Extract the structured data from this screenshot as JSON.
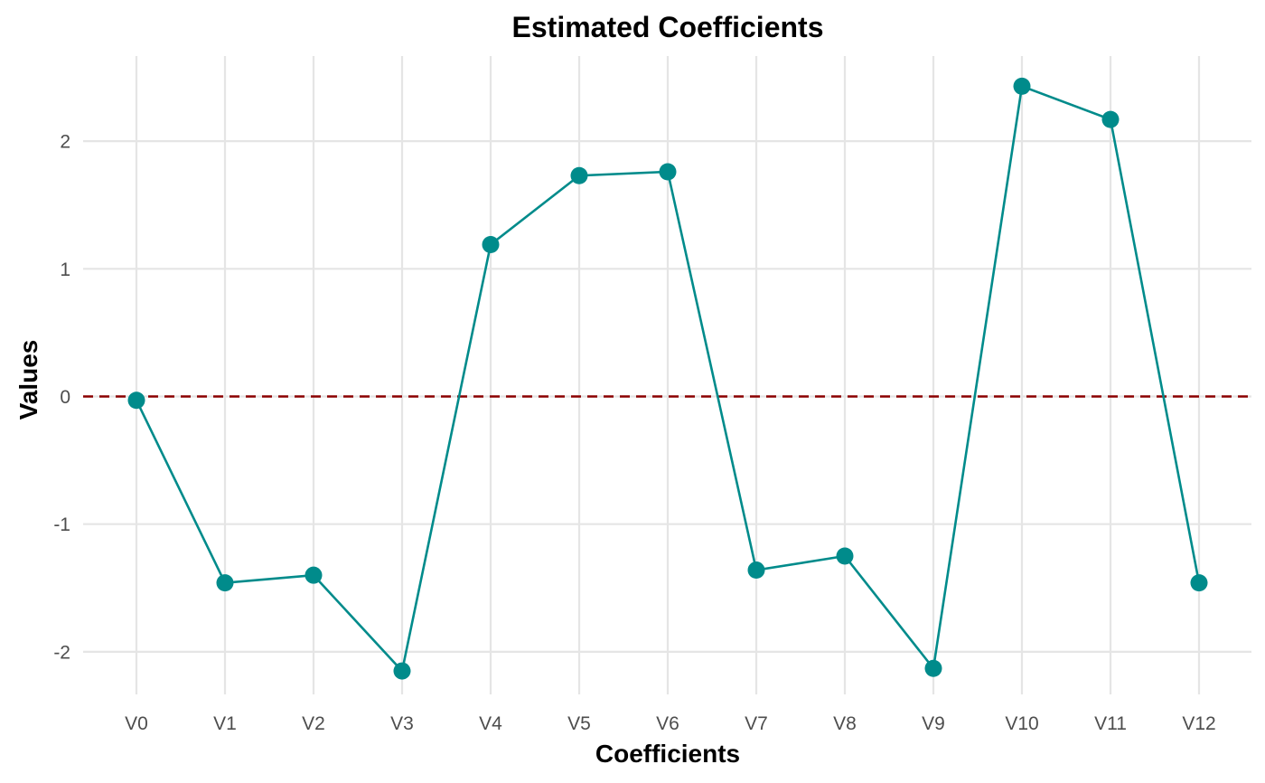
{
  "chart_data": {
    "type": "line",
    "title": "Estimated Coefficients",
    "xlabel": "Coefficients",
    "ylabel": "Values",
    "categories": [
      "V0",
      "V1",
      "V2",
      "V3",
      "V4",
      "V5",
      "V6",
      "V7",
      "V8",
      "V9",
      "V10",
      "V11",
      "V12"
    ],
    "series": [
      {
        "values": [
          -0.03,
          -1.46,
          -1.4,
          -2.15,
          1.19,
          1.73,
          1.76,
          -1.36,
          -1.25,
          -2.13,
          2.43,
          2.17,
          -1.46
        ]
      }
    ],
    "ylim": [
      -2.3,
      2.65
    ],
    "yticks": [
      -2,
      -1,
      0,
      1,
      2
    ],
    "ytick_labels": [
      "-2",
      "-1",
      "0",
      "1",
      "2"
    ],
    "reference_line": {
      "y": 0,
      "style": "dashed",
      "color": "#8b0000"
    },
    "grid": true,
    "legend": "none",
    "colors": {
      "series": "#008b8b",
      "reference": "#8b0000",
      "grid": "#e5e5e5"
    }
  }
}
